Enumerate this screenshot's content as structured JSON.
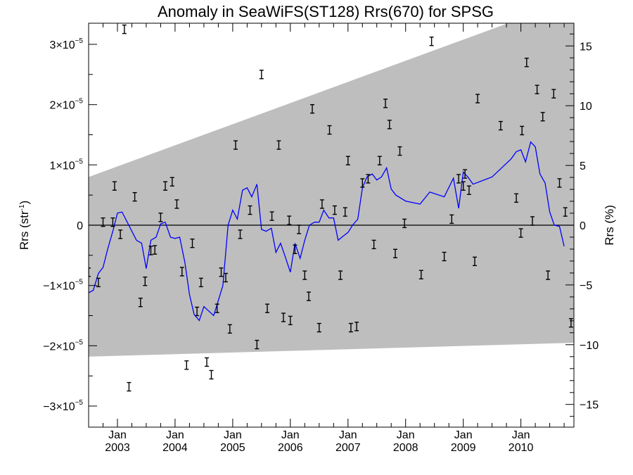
{
  "chart_data": {
    "type": "scatter",
    "title": "Anomaly in SeaWiFS(ST128) Rrs(670) for SPSG",
    "ylabel_left": {
      "base": "Rrs (str",
      "sup": "-1",
      "tail": ")"
    },
    "ylabel_right": "Rrs (%)",
    "x_range": [
      2002.5,
      2010.92
    ],
    "y_range_left": [
      -3.35e-05,
      3.35e-05
    ],
    "y_range_right": [
      -16.9,
      16.9
    ],
    "x_ticks": [
      {
        "value": 2003.0,
        "month": "Jan",
        "year": "2003"
      },
      {
        "value": 2004.0,
        "month": "Jan",
        "year": "2004"
      },
      {
        "value": 2005.0,
        "month": "Jan",
        "year": "2005"
      },
      {
        "value": 2006.0,
        "month": "Jan",
        "year": "2006"
      },
      {
        "value": 2007.0,
        "month": "Jan",
        "year": "2007"
      },
      {
        "value": 2008.0,
        "month": "Jan",
        "year": "2008"
      },
      {
        "value": 2009.0,
        "month": "Jan",
        "year": "2009"
      },
      {
        "value": 2010.0,
        "month": "Jan",
        "year": "2010"
      }
    ],
    "y_ticks_left": [
      {
        "value": 3e-05,
        "mant": "3×10",
        "exp": "−5"
      },
      {
        "value": 2e-05,
        "mant": "2×10",
        "exp": "−5"
      },
      {
        "value": 1e-05,
        "mant": "1×10",
        "exp": "−5"
      },
      {
        "value": 0,
        "mant": "0",
        "exp": ""
      },
      {
        "value": -1e-05,
        "mant": "−1×10",
        "exp": "−5"
      },
      {
        "value": -2e-05,
        "mant": "−2×10",
        "exp": "−5"
      },
      {
        "value": -3e-05,
        "mant": "−3×10",
        "exp": "−5"
      }
    ],
    "y_ticks_right": [
      {
        "value": 15,
        "label": "15"
      },
      {
        "value": 10,
        "label": "10"
      },
      {
        "value": 5,
        "label": "5"
      },
      {
        "value": 0,
        "label": "0"
      },
      {
        "value": -5,
        "label": "−5"
      },
      {
        "value": -10,
        "label": "−10"
      },
      {
        "value": -15,
        "label": "−15"
      }
    ],
    "colors": {
      "band": "#bebebe",
      "line": "#0000ff",
      "points": "#000000",
      "zero_line": "#000000"
    },
    "band": {
      "upper": [
        [
          2002.5,
          8e-06
        ],
        [
          2010.92,
          3.75e-05
        ]
      ],
      "lower": [
        [
          2002.5,
          -2.18e-05
        ],
        [
          2010.92,
          -1.95e-05
        ]
      ]
    },
    "points": [
      [
        2002.5,
        -7.8e-06
      ],
      [
        2002.67,
        -9.5e-06
      ],
      [
        2002.75,
        5e-07
      ],
      [
        2002.92,
        5e-07
      ],
      [
        2002.95,
        6.5e-06
      ],
      [
        2003.05,
        -1.5e-06
      ],
      [
        2003.12,
        3.25e-05
      ],
      [
        2003.2,
        -2.68e-05
      ],
      [
        2003.3,
        4.7e-06
      ],
      [
        2003.4,
        -1.28e-05
      ],
      [
        2003.48,
        -9.3e-06
      ],
      [
        2003.58,
        -4.2e-06
      ],
      [
        2003.65,
        -4.1e-06
      ],
      [
        2003.75,
        1.3e-06
      ],
      [
        2003.83,
        6.5e-06
      ],
      [
        2003.95,
        7.2e-06
      ],
      [
        2004.03,
        3.5e-06
      ],
      [
        2004.12,
        -7.7e-06
      ],
      [
        2004.2,
        -2.32e-05
      ],
      [
        2004.3,
        -3e-06
      ],
      [
        2004.38,
        -1.43e-05
      ],
      [
        2004.45,
        -9.5e-06
      ],
      [
        2004.55,
        -2.27e-05
      ],
      [
        2004.63,
        -2.48e-05
      ],
      [
        2004.73,
        -1.38e-05
      ],
      [
        2004.8,
        -7.8e-06
      ],
      [
        2004.88,
        -8.7e-06
      ],
      [
        2004.95,
        -1.72e-05
      ],
      [
        2005.05,
        1.33e-05
      ],
      [
        2005.13,
        -1.5e-06
      ],
      [
        2005.3,
        2.5e-06
      ],
      [
        2005.42,
        -1.98e-05
      ],
      [
        2005.5,
        2.5e-05
      ],
      [
        2005.6,
        -1.38e-05
      ],
      [
        2005.68,
        1.5e-06
      ],
      [
        2005.8,
        1.33e-05
      ],
      [
        2005.88,
        -1.53e-05
      ],
      [
        2005.98,
        8e-07
      ],
      [
        2006.0,
        -1.58e-05
      ],
      [
        2006.08,
        -4e-06
      ],
      [
        2006.15,
        -7e-07
      ],
      [
        2006.25,
        -8.3e-06
      ],
      [
        2006.32,
        -1.18e-05
      ],
      [
        2006.38,
        1.93e-05
      ],
      [
        2006.5,
        -1.7e-05
      ],
      [
        2006.55,
        3.5e-06
      ],
      [
        2006.68,
        1.58e-05
      ],
      [
        2006.77,
        2.5e-06
      ],
      [
        2006.87,
        -8.3e-06
      ],
      [
        2006.95,
        2.2e-06
      ],
      [
        2007.0,
        1.07e-05
      ],
      [
        2007.05,
        -1.7e-05
      ],
      [
        2007.15,
        -1.68e-05
      ],
      [
        2007.25,
        7e-06
      ],
      [
        2007.35,
        7.7e-06
      ],
      [
        2007.45,
        -3.2e-06
      ],
      [
        2007.55,
        1.07e-05
      ],
      [
        2007.65,
        2.02e-05
      ],
      [
        2007.72,
        1.67e-05
      ],
      [
        2007.82,
        -4.7e-06
      ],
      [
        2007.9,
        1.23e-05
      ],
      [
        2007.98,
        3e-07
      ],
      [
        2008.27,
        -8.2e-06
      ],
      [
        2008.45,
        3.05e-05
      ],
      [
        2008.67,
        -5.2e-06
      ],
      [
        2008.8,
        1e-06
      ],
      [
        2008.92,
        7.7e-06
      ],
      [
        2009.0,
        6.5e-06
      ],
      [
        2009.03,
        8.5e-06
      ],
      [
        2009.1,
        5.8e-06
      ],
      [
        2009.2,
        -6e-06
      ],
      [
        2009.25,
        2.1e-05
      ],
      [
        2009.65,
        1.65e-05
      ],
      [
        2009.92,
        4.5e-06
      ],
      [
        2010.0,
        -1.3e-06
      ],
      [
        2010.02,
        1.57e-05
      ],
      [
        2010.1,
        2.7e-05
      ],
      [
        2010.2,
        7e-07
      ],
      [
        2010.28,
        2.25e-05
      ],
      [
        2010.38,
        1.8e-05
      ],
      [
        2010.47,
        -8.3e-06
      ],
      [
        2010.57,
        2.18e-05
      ],
      [
        2010.67,
        7e-06
      ],
      [
        2010.77,
        2.2e-06
      ],
      [
        2010.87,
        -1.62e-05
      ]
    ],
    "smooth_line": [
      [
        2002.5,
        -1.12e-05
      ],
      [
        2002.58,
        -1.08e-05
      ],
      [
        2002.67,
        -8e-06
      ],
      [
        2002.75,
        -7e-06
      ],
      [
        2002.83,
        -4e-06
      ],
      [
        2002.92,
        -1e-06
      ],
      [
        2003.0,
        2e-06
      ],
      [
        2003.08,
        2.2e-06
      ],
      [
        2003.17,
        5e-07
      ],
      [
        2003.25,
        -1e-06
      ],
      [
        2003.33,
        -2.5e-06
      ],
      [
        2003.42,
        -3e-06
      ],
      [
        2003.5,
        -7.2e-06
      ],
      [
        2003.58,
        -2.5e-06
      ],
      [
        2003.67,
        -2e-06
      ],
      [
        2003.75,
        2e-07
      ],
      [
        2003.83,
        5e-07
      ],
      [
        2003.92,
        -2e-06
      ],
      [
        2004.0,
        -2.2e-06
      ],
      [
        2004.08,
        -2e-06
      ],
      [
        2004.17,
        -6.2e-06
      ],
      [
        2004.25,
        -1.15e-05
      ],
      [
        2004.33,
        -1.48e-05
      ],
      [
        2004.42,
        -1.58e-05
      ],
      [
        2004.5,
        -1.35e-05
      ],
      [
        2004.58,
        -1.42e-05
      ],
      [
        2004.67,
        -1.5e-05
      ],
      [
        2004.75,
        -1.25e-05
      ],
      [
        2004.83,
        -1e-05
      ],
      [
        2004.92,
        0.0
      ],
      [
        2005.0,
        2.5e-06
      ],
      [
        2005.08,
        1e-06
      ],
      [
        2005.17,
        5.8e-06
      ],
      [
        2005.25,
        6.2e-06
      ],
      [
        2005.33,
        4.7e-06
      ],
      [
        2005.42,
        6.8e-06
      ],
      [
        2005.5,
        -7e-07
      ],
      [
        2005.58,
        -1e-06
      ],
      [
        2005.67,
        -5e-07
      ],
      [
        2005.75,
        -4.5e-06
      ],
      [
        2005.83,
        -3e-06
      ],
      [
        2005.92,
        -5.5e-06
      ],
      [
        2006.0,
        -7.8e-06
      ],
      [
        2006.08,
        -3e-06
      ],
      [
        2006.17,
        -5.5e-06
      ],
      [
        2006.25,
        -2.5e-06
      ],
      [
        2006.33,
        0.0
      ],
      [
        2006.42,
        5e-07
      ],
      [
        2006.5,
        5e-07
      ],
      [
        2006.58,
        2.5e-06
      ],
      [
        2006.67,
        1.2e-06
      ],
      [
        2006.75,
        1.2e-06
      ],
      [
        2006.83,
        -2.5e-06
      ],
      [
        2006.92,
        -1.8e-06
      ],
      [
        2007.0,
        -1.2e-06
      ],
      [
        2007.08,
        0.0
      ],
      [
        2007.17,
        1e-06
      ],
      [
        2007.25,
        6.2e-06
      ],
      [
        2007.33,
        8e-06
      ],
      [
        2007.42,
        8.5e-06
      ],
      [
        2007.5,
        7.5e-06
      ],
      [
        2007.58,
        8e-06
      ],
      [
        2007.67,
        9.5e-06
      ],
      [
        2007.75,
        6e-06
      ],
      [
        2007.83,
        5e-06
      ],
      [
        2008.0,
        4e-06
      ],
      [
        2008.25,
        3.5e-06
      ],
      [
        2008.42,
        5.5e-06
      ],
      [
        2008.67,
        4.7e-06
      ],
      [
        2008.83,
        7.8e-06
      ],
      [
        2008.92,
        2.8e-06
      ],
      [
        2009.0,
        8.8e-06
      ],
      [
        2009.08,
        8e-06
      ],
      [
        2009.17,
        6.8e-06
      ],
      [
        2009.5,
        8e-06
      ],
      [
        2009.83,
        1.1e-05
      ],
      [
        2009.92,
        1.22e-05
      ],
      [
        2010.0,
        1.25e-05
      ],
      [
        2010.08,
        1.05e-05
      ],
      [
        2010.17,
        1.38e-05
      ],
      [
        2010.25,
        1.3e-05
      ],
      [
        2010.33,
        8.5e-06
      ],
      [
        2010.42,
        7e-06
      ],
      [
        2010.5,
        2.2e-06
      ],
      [
        2010.58,
        0.0
      ],
      [
        2010.67,
        -2e-07
      ],
      [
        2010.75,
        -3.5e-06
      ]
    ]
  }
}
